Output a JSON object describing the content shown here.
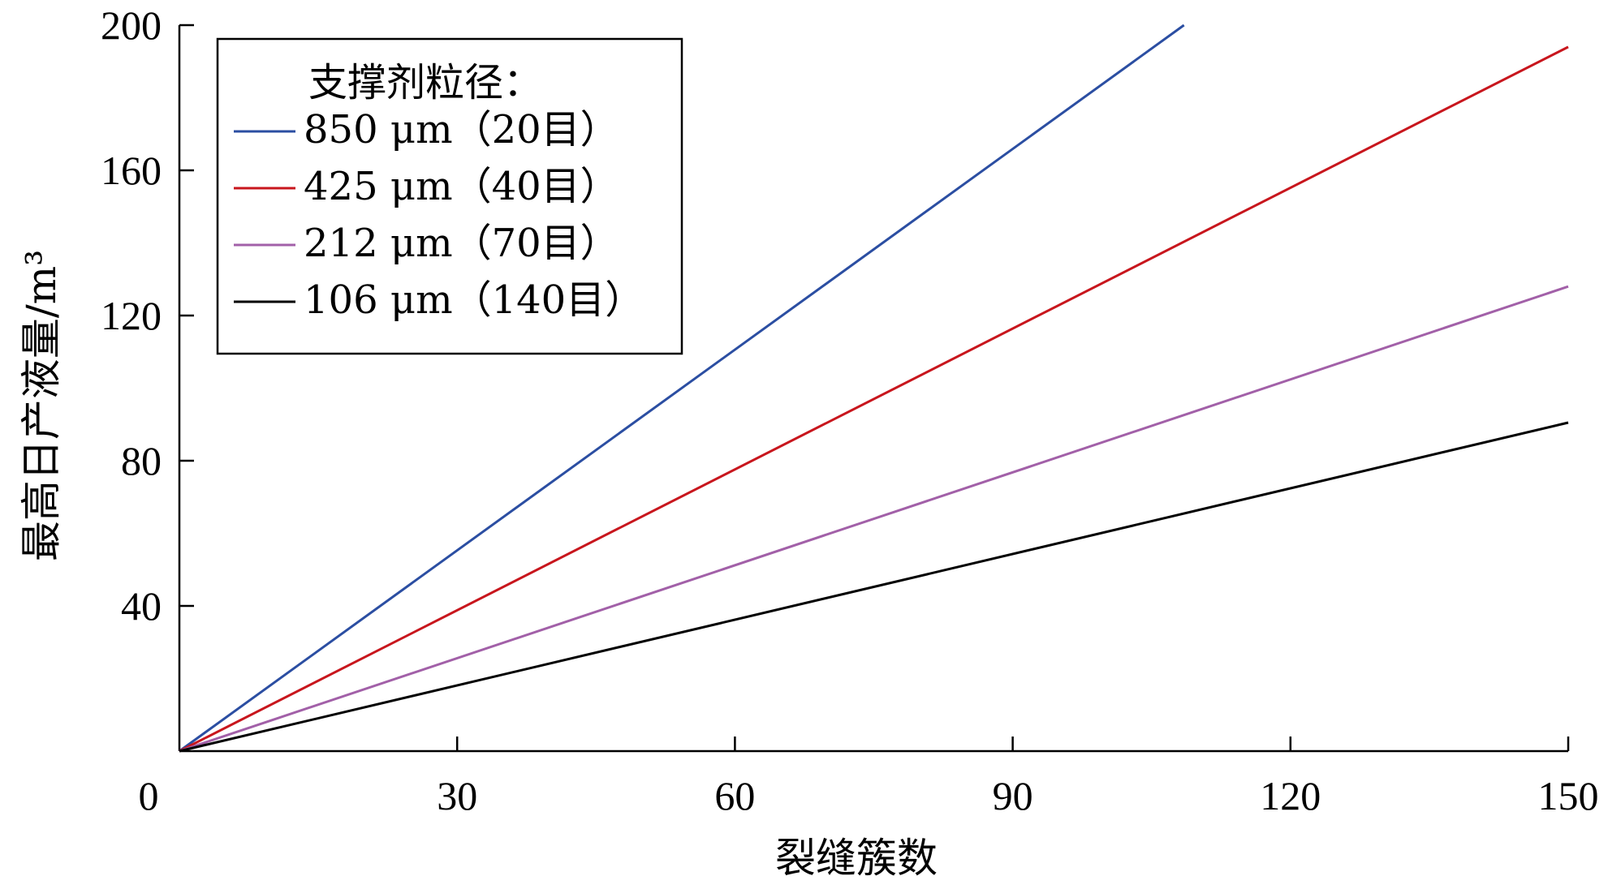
{
  "chart_data": {
    "type": "line",
    "xlabel": "裂缝簇数",
    "ylabel": "最高日产液量/m³",
    "xlim": [
      0,
      150
    ],
    "ylim": [
      0,
      200
    ],
    "x_ticks": [
      "0",
      "30",
      "60",
      "90",
      "120",
      "150"
    ],
    "y_ticks": [
      "40",
      "80",
      "120",
      "160",
      "200"
    ],
    "grid": false,
    "legend": {
      "title": "支撑剂粒径：",
      "placement": "top-left"
    },
    "series": [
      {
        "name": "850 μm（20目）",
        "color": "#2b4ea2",
        "x": [
          0,
          108.5
        ],
        "y": [
          0,
          200
        ]
      },
      {
        "name": "425 μm（40目）",
        "color": "#c8161d",
        "x": [
          0,
          150
        ],
        "y": [
          0,
          194
        ]
      },
      {
        "name": "212 μm（70目）",
        "color": "#a260a8",
        "x": [
          0,
          150
        ],
        "y": [
          0,
          128
        ]
      },
      {
        "name": "106 μm（140目）",
        "color": "#000000",
        "x": [
          0,
          150
        ],
        "y": [
          0,
          90.5
        ]
      }
    ]
  }
}
